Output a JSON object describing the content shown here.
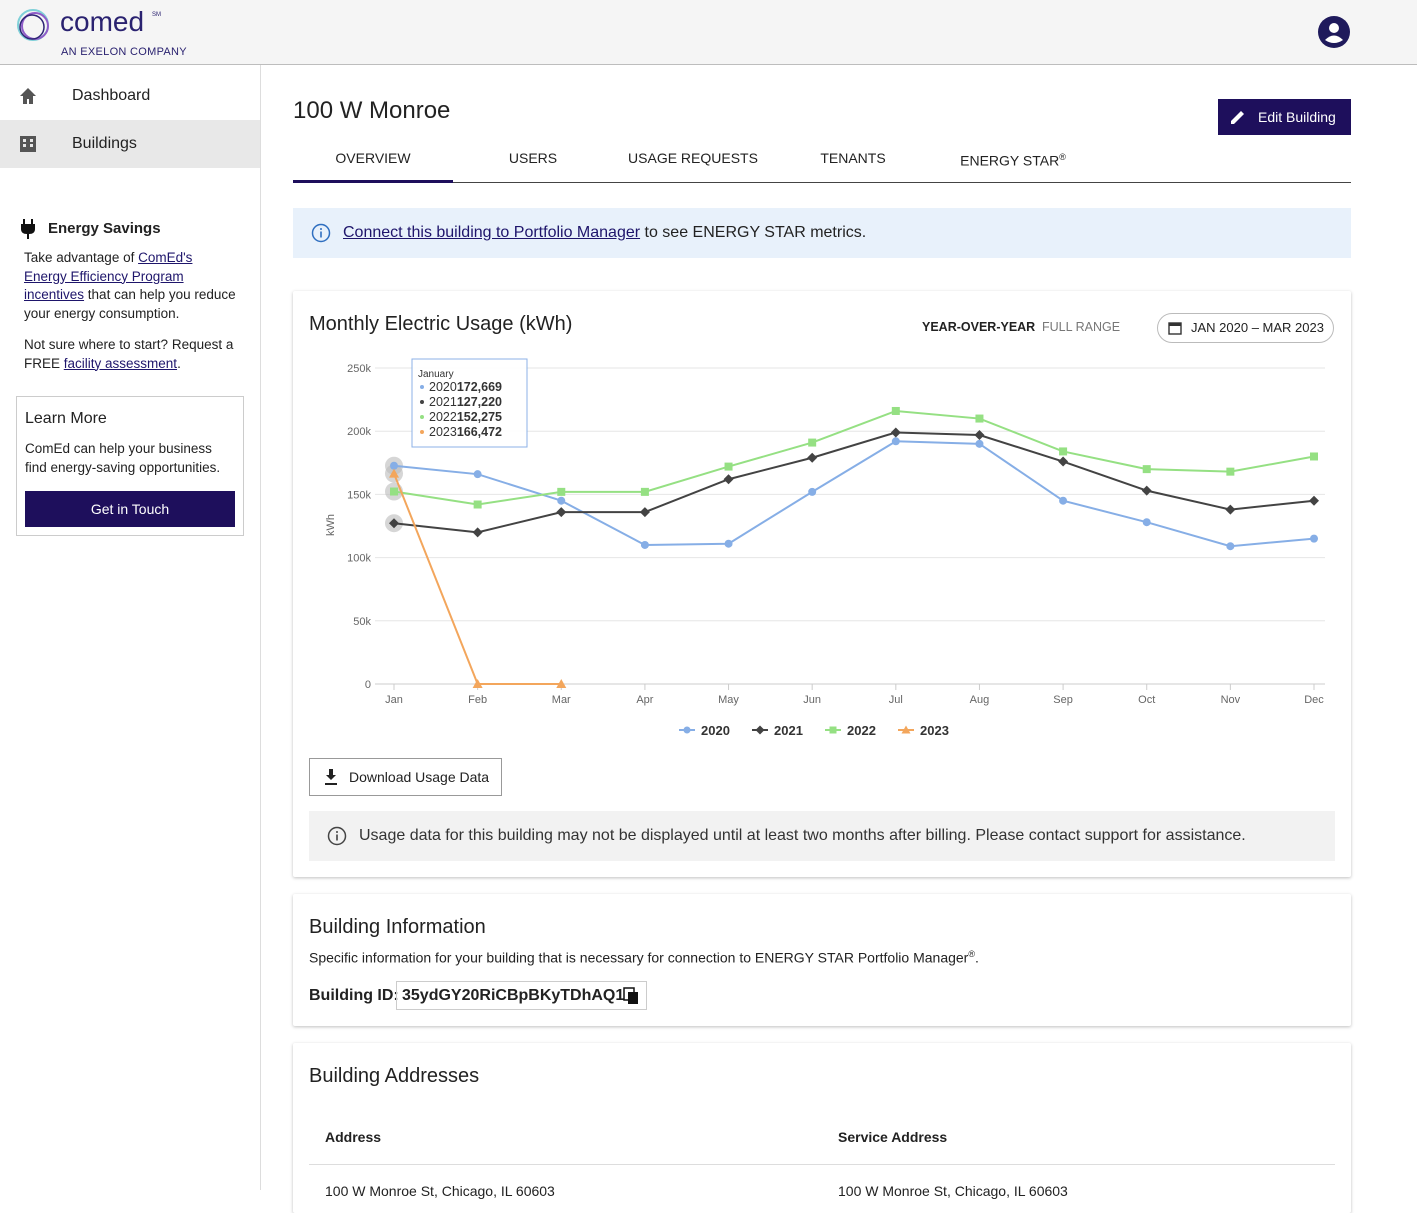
{
  "header": {
    "logo": "comed",
    "logo_mark": "SM",
    "tagline": "AN EXELON COMPANY"
  },
  "sidebar": {
    "nav": [
      "Dashboard",
      "Buildings"
    ],
    "energy_savings": {
      "title": "Energy Savings",
      "text_1": "Take advantage of ",
      "link_1": "ComEd's Energy Efficiency Program incentives",
      "text_2": " that can help you reduce your energy consumption.",
      "text_3": "Not sure where to start? Request a FREE ",
      "link_2": "facility assessment",
      "text_4": "."
    },
    "learn_more": {
      "title": "Learn More",
      "text": "ComEd can help your business find energy-saving opportunities.",
      "button": "Get in Touch"
    }
  },
  "building": {
    "name": "100 W Monroe",
    "edit_button": "Edit Building",
    "tabs": [
      "OVERVIEW",
      "USERS",
      "USAGE REQUESTS",
      "TENANTS",
      "ENERGY STAR"
    ],
    "tab_mark": "®",
    "banner": {
      "link": "Connect this building to Portfolio Manager",
      "text": " to see ENERGY STAR metrics."
    }
  },
  "usage": {
    "toggles": [
      "YEAR-OVER-YEAR",
      "FULL RANGE"
    ],
    "date_range": "JAN 2020 – MAR 2023",
    "download_button": "Download Usage Data",
    "notice": "Usage data for this building may not be displayed until at least two months after billing. Please contact support for assistance."
  },
  "chart_data": {
    "type": "line",
    "title": "Monthly Electric Usage (kWh)",
    "y_label": "kWh",
    "categories": [
      "Jan",
      "Feb",
      "Mar",
      "Apr",
      "May",
      "Jun",
      "Jul",
      "Aug",
      "Sep",
      "Oct",
      "Nov",
      "Dec"
    ],
    "ylim": [
      0,
      250000
    ],
    "yticks": [
      0,
      {
        "value": 50000,
        "label": "50k"
      },
      {
        "value": 100000,
        "label": "100k"
      },
      {
        "value": 150000,
        "label": "150k"
      },
      {
        "value": 200000,
        "label": "200k"
      },
      {
        "value": 250000,
        "label": "250k"
      }
    ],
    "grid": true,
    "legend": "bottom",
    "tooltip": {
      "title": "January"
    },
    "series": [
      {
        "name": "2020",
        "color": "#86aee6",
        "marker": "circle",
        "values": [
          172669,
          166000,
          145000,
          110000,
          111000,
          152000,
          192000,
          190000,
          145000,
          128000,
          109000,
          115000
        ],
        "value_labels": [
          "172,669",
          null,
          null,
          null,
          null,
          null,
          null,
          null,
          null,
          null,
          null,
          null
        ]
      },
      {
        "name": "2021",
        "color": "#434343",
        "marker": "diamond",
        "values": [
          127220,
          120000,
          136000,
          136000,
          162000,
          179000,
          199000,
          197000,
          176000,
          153000,
          138000,
          145000
        ],
        "value_labels": [
          "127,220",
          null,
          null,
          null,
          null,
          null,
          null,
          null,
          null,
          null,
          null,
          null
        ]
      },
      {
        "name": "2022",
        "color": "#95e083",
        "marker": "square",
        "values": [
          152275,
          142000,
          152000,
          152000,
          172000,
          191000,
          216000,
          210000,
          184000,
          170000,
          168000,
          180000
        ],
        "value_labels": [
          "152,275",
          null,
          null,
          null,
          null,
          null,
          null,
          null,
          null,
          null,
          null,
          null
        ]
      },
      {
        "name": "2023",
        "color": "#f3a65c",
        "marker": "triangle",
        "values": [
          166472,
          0,
          0,
          null,
          null,
          null,
          null,
          null,
          null,
          null,
          null,
          null
        ],
        "value_labels": [
          "166,472",
          null,
          null,
          null,
          null,
          null,
          null,
          null,
          null,
          null,
          null,
          null
        ]
      }
    ]
  },
  "info": {
    "title": "Building Information",
    "description": "Specific information for your building that is necessary for connection to ENERGY STAR Portfolio Manager",
    "description_mark": "®",
    "description_end": ".",
    "id_label": "Building ID:",
    "id_value": "35ydGY20RiCBpBKyTDhAQ1"
  },
  "addresses": {
    "title": "Building Addresses",
    "columns": [
      "Address",
      "Service Address"
    ],
    "rows": [
      [
        "100 W Monroe St, Chicago, IL 60603",
        "100 W Monroe St, Chicago, IL 60603"
      ]
    ]
  }
}
